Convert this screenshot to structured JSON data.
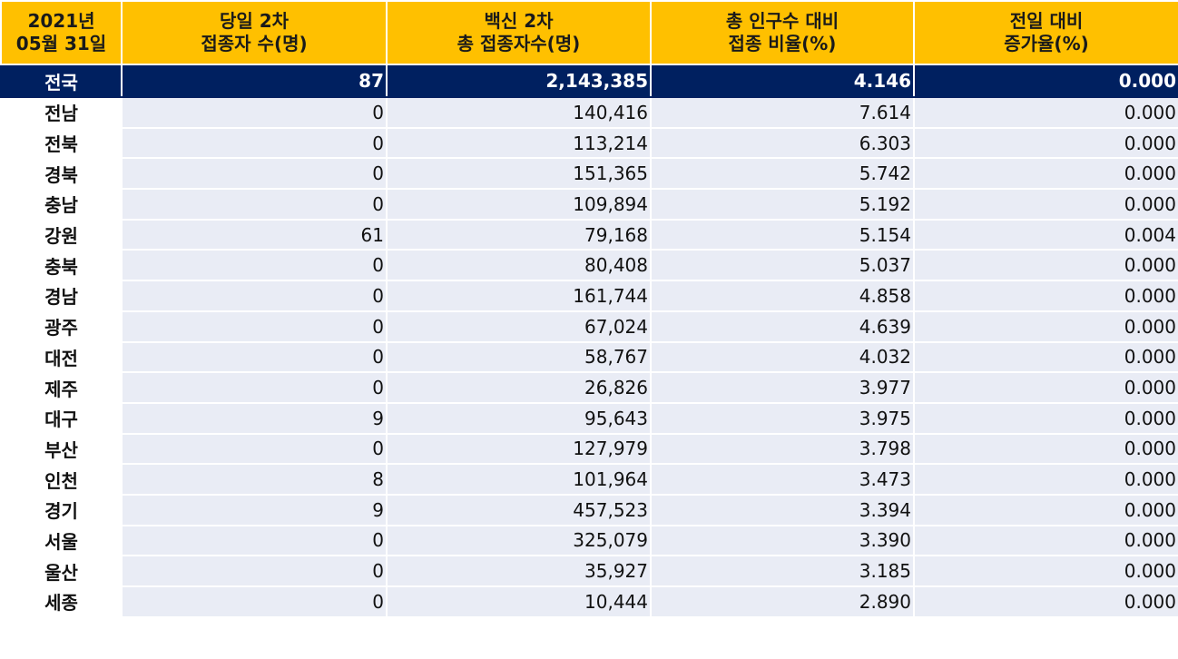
{
  "header": {
    "date_line1": "2021년",
    "date_line2": "05월 31일",
    "col1_line1": "당일 2차",
    "col1_line2": "접종자 수(명)",
    "col2_line1": "백신 2차",
    "col2_line2": "총 접종자수(명)",
    "col3_line1": "총 인구수 대비",
    "col3_line2": "접종 비율(%)",
    "col4_line1": "전일 대비",
    "col4_line2": "증가율(%)"
  },
  "total": {
    "region": "전국",
    "daily": "87",
    "cumulative": "2,143,385",
    "ratio": "4.146",
    "increase": "0.000"
  },
  "rows": [
    {
      "region": "전남",
      "daily": "0",
      "cumulative": "140,416",
      "ratio": "7.614",
      "increase": "0.000"
    },
    {
      "region": "전북",
      "daily": "0",
      "cumulative": "113,214",
      "ratio": "6.303",
      "increase": "0.000"
    },
    {
      "region": "경북",
      "daily": "0",
      "cumulative": "151,365",
      "ratio": "5.742",
      "increase": "0.000"
    },
    {
      "region": "충남",
      "daily": "0",
      "cumulative": "109,894",
      "ratio": "5.192",
      "increase": "0.000"
    },
    {
      "region": "강원",
      "daily": "61",
      "cumulative": "79,168",
      "ratio": "5.154",
      "increase": "0.004"
    },
    {
      "region": "충북",
      "daily": "0",
      "cumulative": "80,408",
      "ratio": "5.037",
      "increase": "0.000"
    },
    {
      "region": "경남",
      "daily": "0",
      "cumulative": "161,744",
      "ratio": "4.858",
      "increase": "0.000"
    },
    {
      "region": "광주",
      "daily": "0",
      "cumulative": "67,024",
      "ratio": "4.639",
      "increase": "0.000"
    },
    {
      "region": "대전",
      "daily": "0",
      "cumulative": "58,767",
      "ratio": "4.032",
      "increase": "0.000"
    },
    {
      "region": "제주",
      "daily": "0",
      "cumulative": "26,826",
      "ratio": "3.977",
      "increase": "0.000"
    },
    {
      "region": "대구",
      "daily": "9",
      "cumulative": "95,643",
      "ratio": "3.975",
      "increase": "0.000"
    },
    {
      "region": "부산",
      "daily": "0",
      "cumulative": "127,979",
      "ratio": "3.798",
      "increase": "0.000"
    },
    {
      "region": "인천",
      "daily": "8",
      "cumulative": "101,964",
      "ratio": "3.473",
      "increase": "0.000"
    },
    {
      "region": "경기",
      "daily": "9",
      "cumulative": "457,523",
      "ratio": "3.394",
      "increase": "0.000"
    },
    {
      "region": "서울",
      "daily": "0",
      "cumulative": "325,079",
      "ratio": "3.390",
      "increase": "0.000"
    },
    {
      "region": "울산",
      "daily": "0",
      "cumulative": "35,927",
      "ratio": "3.185",
      "increase": "0.000"
    },
    {
      "region": "세종",
      "daily": "0",
      "cumulative": "10,444",
      "ratio": "2.890",
      "increase": "0.000"
    }
  ],
  "colors": {
    "header_bg": "#ffc000",
    "total_bg": "#002060",
    "row_bg": "#e9ecf5"
  }
}
